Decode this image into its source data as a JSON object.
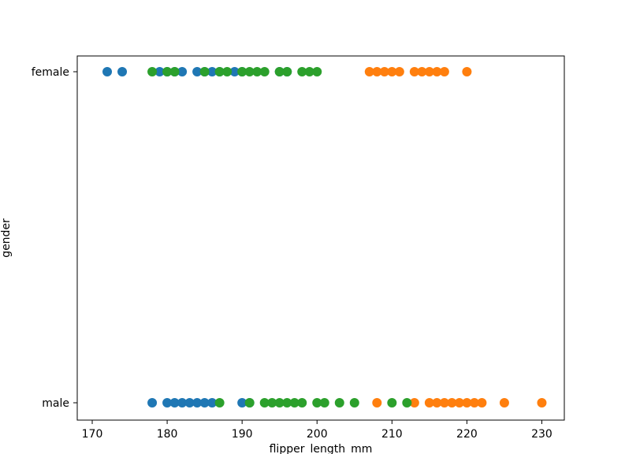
{
  "chart_data": {
    "type": "scatter",
    "title": "",
    "xlabel": "flipper_length_mm",
    "ylabel": "gender",
    "xlim": [
      168,
      233
    ],
    "x_ticks": [
      170,
      180,
      190,
      200,
      210,
      220,
      230
    ],
    "y_categories": [
      "male",
      "female"
    ],
    "grid": false,
    "legend": "none",
    "series": [
      {
        "color": "#1f77b4",
        "points": [
          [
            172,
            "female"
          ],
          [
            174,
            "female"
          ],
          [
            179,
            "female"
          ],
          [
            180,
            "female"
          ],
          [
            181,
            "female"
          ],
          [
            182,
            "female"
          ],
          [
            184,
            "female"
          ],
          [
            185,
            "female"
          ],
          [
            186,
            "female"
          ],
          [
            187,
            "female"
          ],
          [
            189,
            "female"
          ],
          [
            190,
            "female"
          ],
          [
            195,
            "female"
          ],
          [
            196,
            "female"
          ],
          [
            178,
            "male"
          ],
          [
            180,
            "male"
          ],
          [
            181,
            "male"
          ],
          [
            182,
            "male"
          ],
          [
            183,
            "male"
          ],
          [
            184,
            "male"
          ],
          [
            185,
            "male"
          ],
          [
            186,
            "male"
          ],
          [
            190,
            "male"
          ],
          [
            191,
            "male"
          ]
        ]
      },
      {
        "color": "#ff7f0e",
        "points": [
          [
            207,
            "female"
          ],
          [
            208,
            "female"
          ],
          [
            209,
            "female"
          ],
          [
            210,
            "female"
          ],
          [
            211,
            "female"
          ],
          [
            213,
            "female"
          ],
          [
            214,
            "female"
          ],
          [
            215,
            "female"
          ],
          [
            216,
            "female"
          ],
          [
            217,
            "female"
          ],
          [
            220,
            "female"
          ],
          [
            208,
            "male"
          ],
          [
            213,
            "male"
          ],
          [
            215,
            "male"
          ],
          [
            216,
            "male"
          ],
          [
            217,
            "male"
          ],
          [
            218,
            "male"
          ],
          [
            219,
            "male"
          ],
          [
            220,
            "male"
          ],
          [
            221,
            "male"
          ],
          [
            222,
            "male"
          ],
          [
            225,
            "male"
          ],
          [
            230,
            "male"
          ]
        ]
      },
      {
        "color": "#2ca02c",
        "points": [
          [
            178,
            "female"
          ],
          [
            180,
            "female"
          ],
          [
            181,
            "female"
          ],
          [
            185,
            "female"
          ],
          [
            187,
            "female"
          ],
          [
            188,
            "female"
          ],
          [
            190,
            "female"
          ],
          [
            191,
            "female"
          ],
          [
            192,
            "female"
          ],
          [
            193,
            "female"
          ],
          [
            195,
            "female"
          ],
          [
            196,
            "female"
          ],
          [
            198,
            "female"
          ],
          [
            199,
            "female"
          ],
          [
            200,
            "female"
          ],
          [
            187,
            "male"
          ],
          [
            191,
            "male"
          ],
          [
            193,
            "male"
          ],
          [
            194,
            "male"
          ],
          [
            195,
            "male"
          ],
          [
            196,
            "male"
          ],
          [
            197,
            "male"
          ],
          [
            198,
            "male"
          ],
          [
            200,
            "male"
          ],
          [
            201,
            "male"
          ],
          [
            203,
            "male"
          ],
          [
            205,
            "male"
          ],
          [
            210,
            "male"
          ],
          [
            212,
            "male"
          ]
        ]
      }
    ]
  }
}
